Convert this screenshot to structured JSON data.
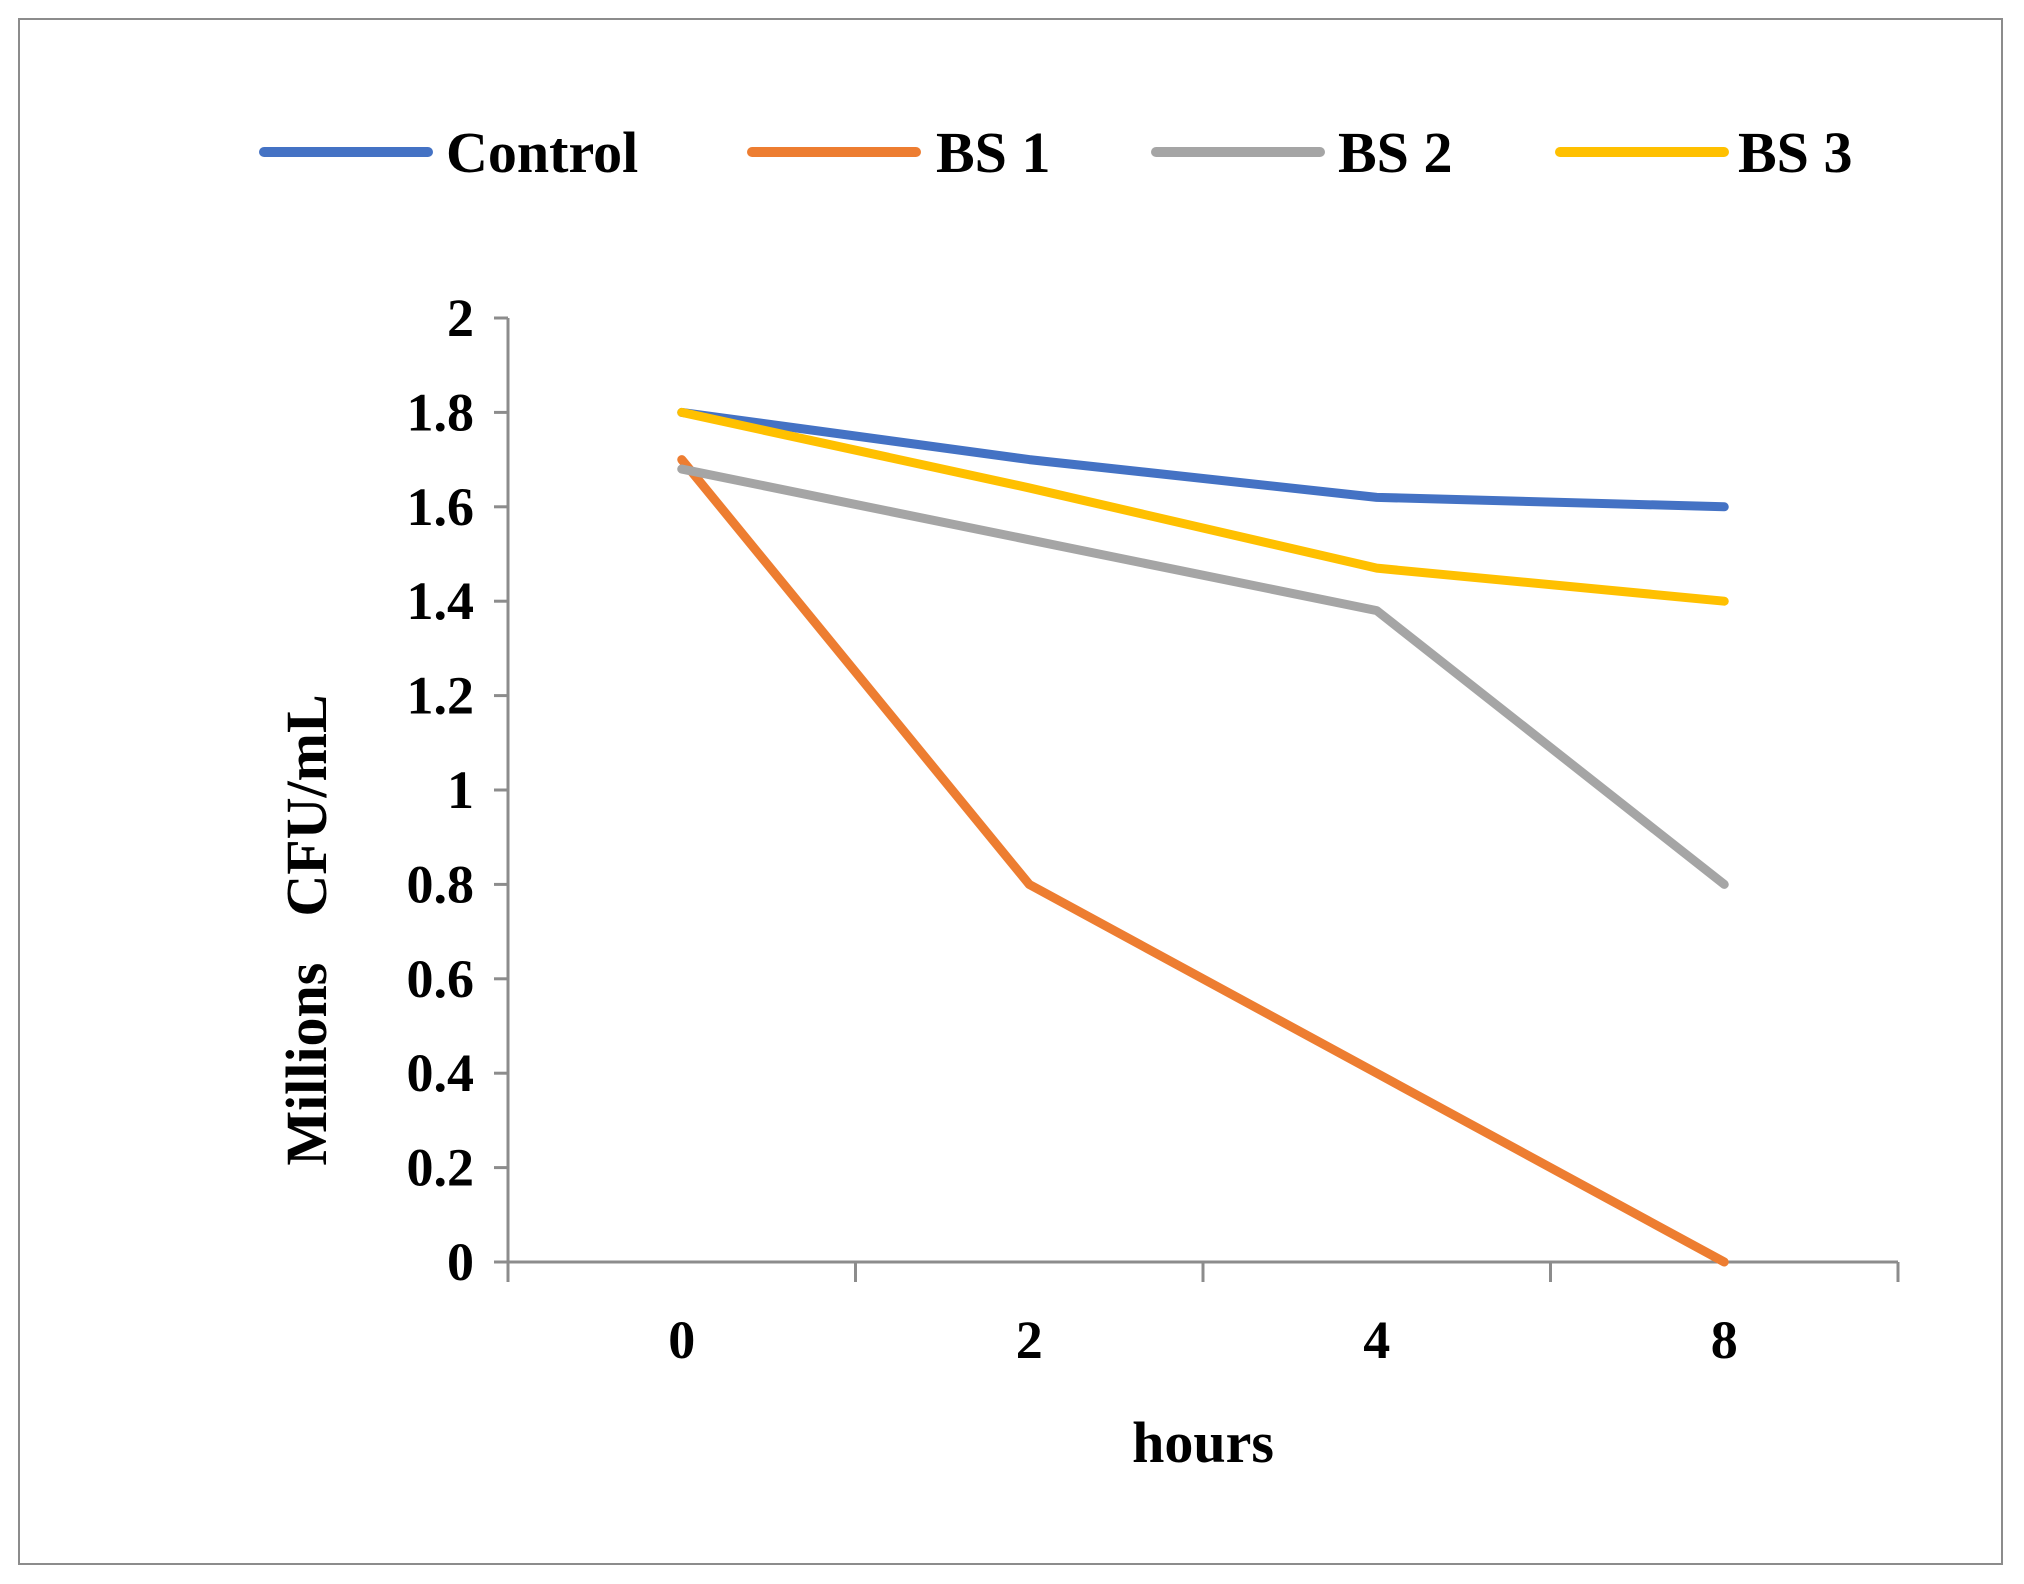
{
  "chart_data": {
    "type": "line",
    "title": "",
    "xlabel": "hours",
    "ylabel_parts": [
      "Millions",
      "CFU/mL"
    ],
    "categories": [
      "0",
      "2",
      "4",
      "8"
    ],
    "ylim": [
      0,
      2
    ],
    "yticks": [
      0,
      0.2,
      0.4,
      0.6,
      0.8,
      1,
      1.2,
      1.4,
      1.6,
      1.8,
      2
    ],
    "ytick_labels": [
      "0",
      "0.2",
      "0.4",
      "0.6",
      "0.8",
      "1",
      "1.2",
      "1.4",
      "1.6",
      "1.8",
      "2"
    ],
    "grid": false,
    "legend_position": "top",
    "series": [
      {
        "name": "Control",
        "color": "#4472C4",
        "values": [
          1.8,
          1.7,
          1.62,
          1.6
        ]
      },
      {
        "name": "BS 1",
        "color": "#ED7D31",
        "values": [
          1.7,
          0.8,
          0.4,
          0.0
        ]
      },
      {
        "name": "BS 2",
        "color": "#A5A5A5",
        "values": [
          1.68,
          1.53,
          1.38,
          0.8
        ]
      },
      {
        "name": "BS 3",
        "color": "#FFC000",
        "values": [
          1.8,
          1.64,
          1.47,
          1.4
        ]
      }
    ]
  }
}
